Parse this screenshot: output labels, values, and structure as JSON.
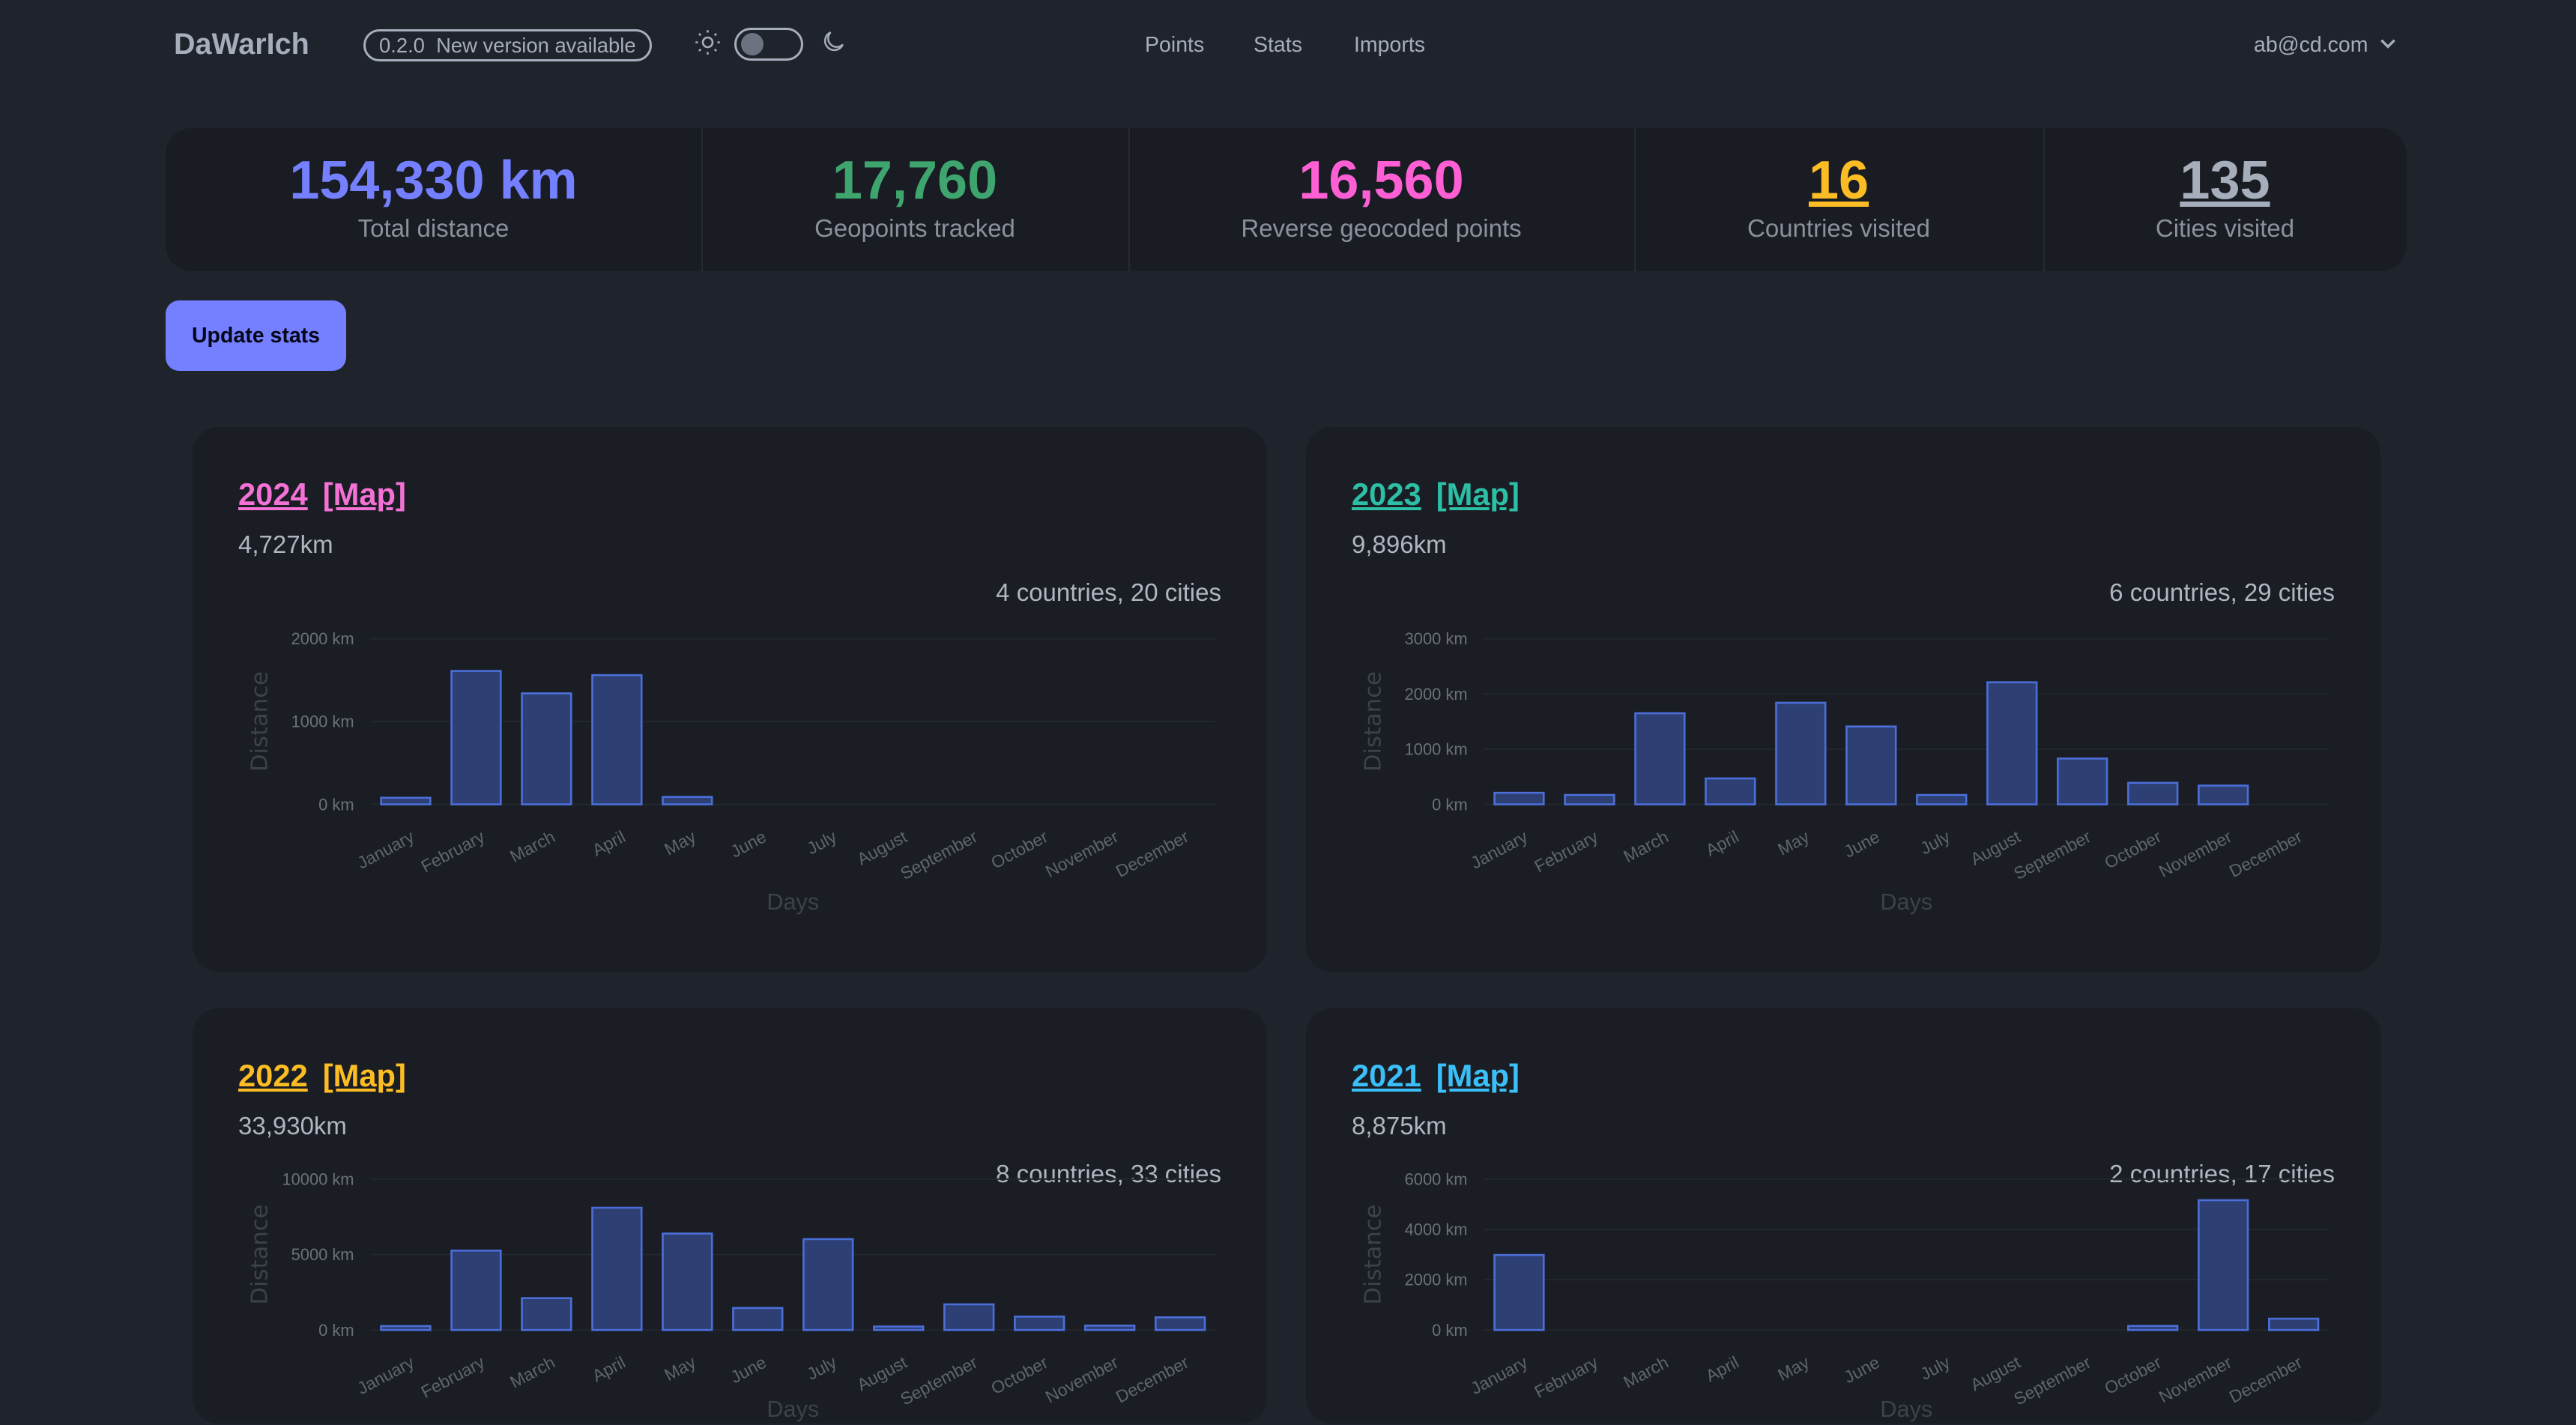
{
  "header": {
    "logo": "DaWarIch",
    "version_badge": "0.2.0  New version available",
    "theme_toggle": {
      "icons": [
        "sun-icon",
        "moon-icon"
      ],
      "dark_mode": false
    },
    "nav": [
      "Points",
      "Stats",
      "Imports"
    ],
    "user_menu": "ab@cd.com"
  },
  "stats": [
    {
      "value": "154,330 km",
      "label": "Total distance",
      "color": "#7480ff"
    },
    {
      "value": "17,760",
      "label": "Geopoints tracked",
      "color": "#3fa56f"
    },
    {
      "value": "16,560",
      "label": "Reverse geocoded points",
      "color": "#ff5fd4"
    },
    {
      "value": "16",
      "label": "Countries visited",
      "color": "#fbbd23"
    },
    {
      "value": "135",
      "label": "Cities visited",
      "color": "#a6adbb"
    }
  ],
  "update_button": "Update stats",
  "years": [
    {
      "year": "2024",
      "map": "[Map]",
      "distance": "4,727km",
      "places": "4 countries, 20 cities",
      "color": "#f471d5"
    },
    {
      "year": "2023",
      "map": "[Map]",
      "distance": "9,896km",
      "places": "6 countries, 29 cities",
      "color": "#2cbfa6"
    },
    {
      "year": "2022",
      "map": "[Map]",
      "distance": "33,930km",
      "places": "8 countries, 33 cities",
      "color": "#fbbd23"
    },
    {
      "year": "2021",
      "map": "[Map]",
      "distance": "8,875km",
      "places": "2 countries, 17 cities",
      "color": "#3abff8"
    }
  ],
  "chart_data": [
    {
      "type": "bar",
      "title": "",
      "xlabel": "Days",
      "ylabel": "Distance",
      "categories": [
        "January",
        "February",
        "March",
        "April",
        "May",
        "June",
        "July",
        "August",
        "September",
        "October",
        "November",
        "December"
      ],
      "values": [
        80,
        1610,
        1340,
        1560,
        90,
        0,
        0,
        0,
        0,
        0,
        0,
        0
      ],
      "ylim": [
        0,
        2000
      ],
      "yticks": [
        "0 km",
        "1000 km",
        "2000 km"
      ],
      "ytick_values": [
        0,
        1000,
        2000
      ],
      "bar_color": "#4c6ed8",
      "grid": true
    },
    {
      "type": "bar",
      "title": "",
      "xlabel": "Days",
      "ylabel": "Distance",
      "categories": [
        "January",
        "February",
        "March",
        "April",
        "May",
        "June",
        "July",
        "August",
        "September",
        "October",
        "November",
        "December"
      ],
      "values": [
        210,
        170,
        1650,
        470,
        1840,
        1410,
        170,
        2210,
        830,
        390,
        340,
        0
      ],
      "ylim": [
        0,
        3000
      ],
      "yticks": [
        "0 km",
        "1000 km",
        "2000 km",
        "3000 km"
      ],
      "ytick_values": [
        0,
        1000,
        2000,
        3000
      ],
      "bar_color": "#4c6ed8",
      "grid": true
    },
    {
      "type": "bar",
      "title": "",
      "xlabel": "Days",
      "ylabel": "Distance",
      "categories": [
        "January",
        "February",
        "March",
        "April",
        "May",
        "June",
        "July",
        "August",
        "September",
        "October",
        "November",
        "December"
      ],
      "values": [
        260,
        5260,
        2110,
        8100,
        6390,
        1460,
        6020,
        230,
        1700,
        890,
        290,
        840
      ],
      "ylim": [
        0,
        10000
      ],
      "yticks": [
        "0 km",
        "5000 km",
        "10000 km"
      ],
      "ytick_values": [
        0,
        5000,
        10000
      ],
      "bar_color": "#4c6ed8",
      "grid": true
    },
    {
      "type": "bar",
      "title": "",
      "xlabel": "Days",
      "ylabel": "Distance",
      "categories": [
        "January",
        "February",
        "March",
        "April",
        "May",
        "June",
        "July",
        "August",
        "September",
        "October",
        "November",
        "December"
      ],
      "values": [
        2980,
        0,
        0,
        0,
        0,
        0,
        0,
        0,
        0,
        160,
        5160,
        450
      ],
      "ylim": [
        0,
        6000
      ],
      "yticks": [
        "0 km",
        "2000 km",
        "4000 km",
        "6000 km"
      ],
      "ytick_values": [
        0,
        2000,
        4000,
        6000
      ],
      "bar_color": "#4c6ed8",
      "grid": true
    }
  ]
}
